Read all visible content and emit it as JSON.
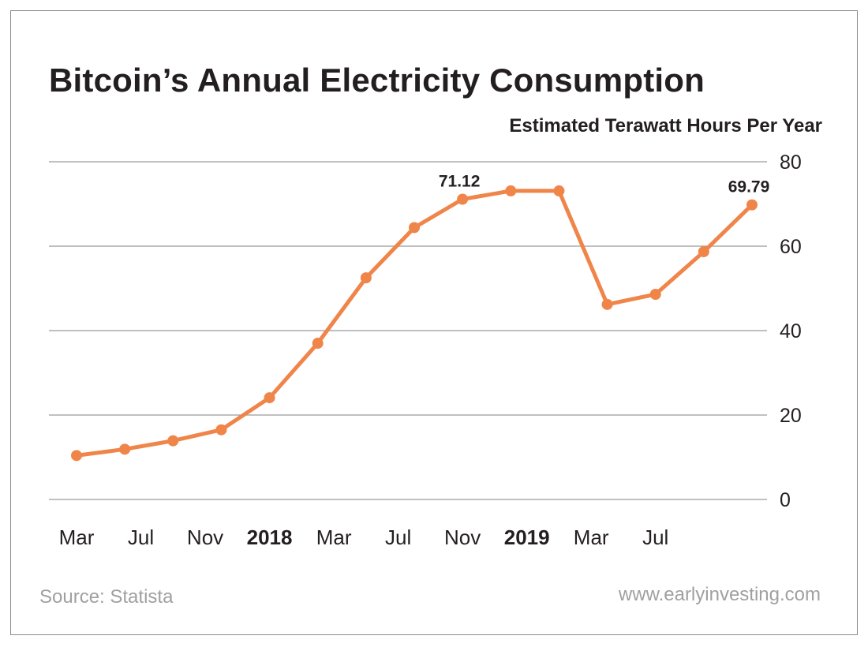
{
  "chart_data": {
    "type": "line",
    "title": "Bitcoin’s Annual Electricity Consumption",
    "ylabel": "Estimated Terawatt Hours Per Year",
    "xlabel": "",
    "ylim": [
      0,
      80
    ],
    "yticks": [
      "0",
      "20",
      "40",
      "60",
      "80"
    ],
    "grid": true,
    "line_color": "#f0854a",
    "x_tick_labels": [
      {
        "label": "Mar",
        "bold": false,
        "at": 0
      },
      {
        "label": "Jul",
        "bold": false,
        "at": 1
      },
      {
        "label": "Nov",
        "bold": false,
        "at": 2
      },
      {
        "label": "2018",
        "bold": true,
        "at": 3
      },
      {
        "label": "Mar",
        "bold": false,
        "at": 4
      },
      {
        "label": "Jul",
        "bold": false,
        "at": 5
      },
      {
        "label": "Nov",
        "bold": false,
        "at": 6
      },
      {
        "label": "2019",
        "bold": true,
        "at": 7
      },
      {
        "label": "Mar",
        "bold": false,
        "at": 8
      },
      {
        "label": "Jul",
        "bold": false,
        "at": 9
      }
    ],
    "series": [
      {
        "points": [
          {
            "x": 0.0,
            "y": 10.4
          },
          {
            "x": 0.95,
            "y": 11.9
          },
          {
            "x": 1.9,
            "y": 13.9
          },
          {
            "x": 2.85,
            "y": 16.5
          },
          {
            "x": 3.8,
            "y": 24.1
          },
          {
            "x": 4.75,
            "y": 37.0
          },
          {
            "x": 5.7,
            "y": 52.5
          },
          {
            "x": 6.65,
            "y": 64.4
          },
          {
            "x": 7.6,
            "y": 71.12,
            "label": "71.12"
          },
          {
            "x": 8.55,
            "y": 73.1
          },
          {
            "x": 9.5,
            "y": 73.1
          },
          {
            "x": 10.45,
            "y": 46.2
          },
          {
            "x": 11.4,
            "y": 48.6
          },
          {
            "x": 12.35,
            "y": 58.7
          },
          {
            "x": 13.3,
            "y": 69.79,
            "label": "69.79"
          }
        ]
      }
    ]
  },
  "footer": {
    "source": "Source: Statista",
    "website": "www.earlyinvesting.com"
  }
}
